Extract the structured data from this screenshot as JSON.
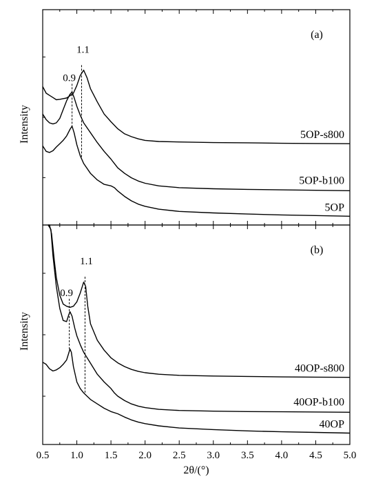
{
  "chart_data": [
    {
      "type": "line",
      "panel_label": "(a)",
      "ylabel": "Intensity",
      "xlim": [
        0.5,
        5.0
      ],
      "x_ticks": [
        "0.5",
        "1.0",
        "1.5",
        "2.0",
        "2.5",
        "3.0",
        "3.5",
        "4.0",
        "4.5",
        "5.0"
      ],
      "peak_marks": [
        {
          "label": "0.9",
          "x": 0.93
        },
        {
          "label": "1.1",
          "x": 1.07
        }
      ],
      "series": [
        {
          "name": "5OP-s800",
          "x": [
            0.5,
            0.55,
            0.6,
            0.65,
            0.7,
            0.75,
            0.8,
            0.85,
            0.9,
            0.95,
            1.0,
            1.05,
            1.1,
            1.15,
            1.2,
            1.3,
            1.4,
            1.5,
            1.6,
            1.7,
            1.8,
            1.9,
            2.0,
            2.2,
            2.5,
            3.0,
            3.5,
            4.0,
            4.5,
            5.0
          ],
          "y": [
            6.3,
            6.0,
            5.9,
            5.8,
            5.7,
            5.72,
            5.75,
            5.78,
            5.88,
            6.0,
            6.35,
            6.8,
            7.05,
            6.7,
            6.2,
            5.6,
            5.05,
            4.7,
            4.38,
            4.15,
            4.02,
            3.92,
            3.85,
            3.8,
            3.78,
            3.75,
            3.74,
            3.72,
            3.71,
            3.7
          ]
        },
        {
          "name": "5OP-b100",
          "x": [
            0.5,
            0.55,
            0.6,
            0.65,
            0.7,
            0.75,
            0.8,
            0.85,
            0.9,
            0.93,
            0.96,
            1.0,
            1.05,
            1.1,
            1.2,
            1.3,
            1.4,
            1.5,
            1.55,
            1.6,
            1.7,
            1.8,
            1.9,
            2.0,
            2.2,
            2.5,
            3.0,
            3.5,
            4.0,
            4.5,
            5.0
          ],
          "y": [
            5.05,
            4.8,
            4.65,
            4.6,
            4.65,
            4.85,
            5.25,
            5.65,
            5.95,
            6.05,
            5.8,
            5.4,
            5.0,
            4.65,
            4.2,
            3.75,
            3.35,
            3.0,
            2.8,
            2.6,
            2.35,
            2.15,
            2.0,
            1.9,
            1.78,
            1.7,
            1.65,
            1.62,
            1.6,
            1.58,
            1.56
          ]
        },
        {
          "name": "5OP",
          "x": [
            0.5,
            0.55,
            0.6,
            0.65,
            0.7,
            0.75,
            0.8,
            0.85,
            0.9,
            0.93,
            0.96,
            1.0,
            1.05,
            1.1,
            1.2,
            1.3,
            1.4,
            1.5,
            1.55,
            1.6,
            1.7,
            1.8,
            1.9,
            2.0,
            2.2,
            2.5,
            3.0,
            3.5,
            4.0,
            4.5,
            5.0
          ],
          "y": [
            3.6,
            3.35,
            3.3,
            3.38,
            3.55,
            3.7,
            3.85,
            4.05,
            4.35,
            4.5,
            4.2,
            3.65,
            3.15,
            2.8,
            2.35,
            2.05,
            1.85,
            1.78,
            1.7,
            1.55,
            1.3,
            1.1,
            0.95,
            0.85,
            0.72,
            0.62,
            0.55,
            0.5,
            0.46,
            0.43,
            0.4
          ]
        }
      ]
    },
    {
      "type": "line",
      "panel_label": "(b)",
      "ylabel": "Intensity",
      "xlabel": "2θ/(°)",
      "xlim": [
        0.5,
        5.0
      ],
      "x_ticks": [
        "0.5",
        "1.0",
        "1.5",
        "2.0",
        "2.5",
        "3.0",
        "3.5",
        "4.0",
        "4.5",
        "5.0"
      ],
      "peak_marks": [
        {
          "label": "0.9",
          "x": 0.89
        },
        {
          "label": "1.1",
          "x": 1.12
        }
      ],
      "series": [
        {
          "name": "40OP-s800",
          "x": [
            0.58,
            0.6,
            0.63,
            0.67,
            0.7,
            0.75,
            0.8,
            0.85,
            0.9,
            0.95,
            1.0,
            1.05,
            1.1,
            1.13,
            1.16,
            1.2,
            1.3,
            1.4,
            1.5,
            1.6,
            1.7,
            1.8,
            1.9,
            2.0,
            2.2,
            2.5,
            3.0,
            3.5,
            4.0,
            4.5,
            5.0
          ],
          "y": [
            12.5,
            11.0,
            9.6,
            8.4,
            7.6,
            6.8,
            6.4,
            6.3,
            6.25,
            6.3,
            6.5,
            6.9,
            7.4,
            7.2,
            6.3,
            5.5,
            4.75,
            4.3,
            3.95,
            3.72,
            3.55,
            3.42,
            3.33,
            3.27,
            3.2,
            3.15,
            3.12,
            3.1,
            3.08,
            3.07,
            3.06
          ]
        },
        {
          "name": "40OP-b100",
          "x": [
            0.58,
            0.62,
            0.65,
            0.7,
            0.75,
            0.8,
            0.85,
            0.88,
            0.9,
            0.93,
            0.97,
            1.0,
            1.05,
            1.1,
            1.2,
            1.3,
            1.4,
            1.5,
            1.55,
            1.6,
            1.7,
            1.8,
            1.9,
            2.0,
            2.2,
            2.5,
            3.0,
            3.5,
            4.0,
            4.5,
            5.0
          ],
          "y": [
            11.8,
            9.8,
            8.6,
            7.2,
            6.2,
            5.65,
            5.6,
            5.9,
            6.05,
            5.85,
            5.3,
            4.95,
            4.55,
            4.2,
            3.7,
            3.2,
            2.85,
            2.55,
            2.35,
            2.2,
            2.0,
            1.85,
            1.75,
            1.68,
            1.6,
            1.55,
            1.52,
            1.5,
            1.49,
            1.48,
            1.47
          ]
        },
        {
          "name": "40OP",
          "x": [
            0.5,
            0.55,
            0.6,
            0.65,
            0.7,
            0.75,
            0.8,
            0.85,
            0.88,
            0.9,
            0.92,
            0.95,
            1.0,
            1.05,
            1.1,
            1.2,
            1.3,
            1.4,
            1.5,
            1.6,
            1.7,
            1.8,
            1.9,
            2.0,
            2.2,
            2.5,
            3.0,
            3.5,
            4.0,
            4.5,
            5.0
          ],
          "y": [
            3.75,
            3.65,
            3.45,
            3.35,
            3.4,
            3.5,
            3.65,
            3.85,
            4.15,
            4.35,
            4.2,
            3.55,
            2.85,
            2.55,
            2.35,
            2.05,
            1.85,
            1.65,
            1.5,
            1.4,
            1.25,
            1.12,
            1.02,
            0.95,
            0.85,
            0.75,
            0.68,
            0.62,
            0.58,
            0.55,
            0.52
          ]
        }
      ]
    }
  ]
}
